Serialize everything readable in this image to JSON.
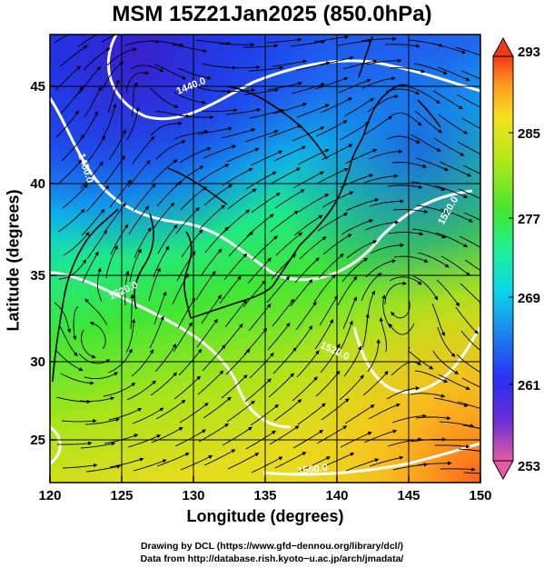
{
  "title": "MSM 15Z21Jan2025 (850.0hPa)",
  "map": {
    "xlabel": "Longitude (degrees)",
    "ylabel": "Latitude  (degrees)",
    "xlim": [
      120,
      150
    ],
    "ylim": [
      22.5,
      47.5
    ],
    "xticks": [
      120,
      125,
      130,
      135,
      140,
      145,
      150
    ],
    "yticks": [
      25,
      30,
      35,
      40,
      45
    ],
    "contour_labels": [
      "1440.0",
      "1480.0",
      "1520.0",
      "1520.0",
      "1520.0",
      "1560.0"
    ],
    "field": "temperature (K) shaded, geopotential height contours, wind streamlines"
  },
  "colorbar": {
    "range": [
      253,
      293
    ],
    "tick_labels": [
      "293",
      "285",
      "277",
      "269",
      "261",
      "253"
    ],
    "colors": [
      "#e65aa5",
      "#6a2fd6",
      "#2a2ff5",
      "#1e78ee",
      "#0ad6ea",
      "#1ef096",
      "#45e630",
      "#b8e818",
      "#f3e21e",
      "#ff9a1e",
      "#ee3a18"
    ]
  },
  "credits": {
    "line1": "Drawing by DCL (https://www.gfd−dennou.org/library/dcl/)",
    "line2": "Data from http://database.rish.kyoto−u.ac.jp/arch/jmadata/"
  }
}
